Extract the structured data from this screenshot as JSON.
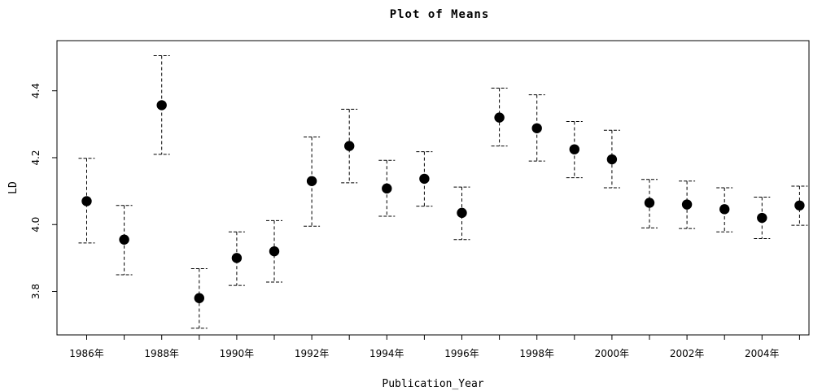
{
  "chart_data": {
    "type": "scatter",
    "title": "Plot of Means",
    "xlabel": "Publication_Year",
    "ylabel": "LD",
    "ylim": [
      3.67,
      4.55
    ],
    "y_ticks": [
      3.8,
      4.0,
      4.2,
      4.4
    ],
    "y_tick_labels": [
      "3.8",
      "4.0",
      "4.2",
      "4.4"
    ],
    "categories": [
      "1986年",
      "1987年",
      "1988年",
      "1989年",
      "1990年",
      "1991年",
      "1992年",
      "1993年",
      "1994年",
      "1995年",
      "1996年",
      "1997年",
      "1998年",
      "1999年",
      "2000年",
      "2001年",
      "2002年",
      "2003年",
      "2004年",
      "2005年"
    ],
    "x_tick_labels_shown": [
      "1986年",
      "1988年",
      "1990年",
      "1992年",
      "1994年",
      "1996年",
      "1998年",
      "2000年",
      "2002年",
      "2004年"
    ],
    "means": [
      4.07,
      3.955,
      4.357,
      3.78,
      3.9,
      3.92,
      4.13,
      4.235,
      4.108,
      4.137,
      4.035,
      4.32,
      4.288,
      4.225,
      4.195,
      4.065,
      4.06,
      4.046,
      4.02,
      4.057
    ],
    "upper": [
      4.198,
      4.057,
      4.505,
      3.868,
      3.978,
      4.012,
      4.262,
      4.345,
      4.192,
      4.218,
      4.112,
      4.408,
      4.388,
      4.308,
      4.282,
      4.135,
      4.13,
      4.11,
      4.082,
      4.115
    ],
    "lower": [
      3.945,
      3.85,
      4.21,
      3.69,
      3.818,
      3.828,
      3.995,
      4.125,
      4.025,
      4.055,
      3.955,
      4.235,
      4.19,
      4.14,
      4.11,
      3.99,
      3.988,
      3.978,
      3.958,
      3.998
    ],
    "grid": false,
    "error_bar_style": "dashed",
    "point_color": "#000000"
  }
}
